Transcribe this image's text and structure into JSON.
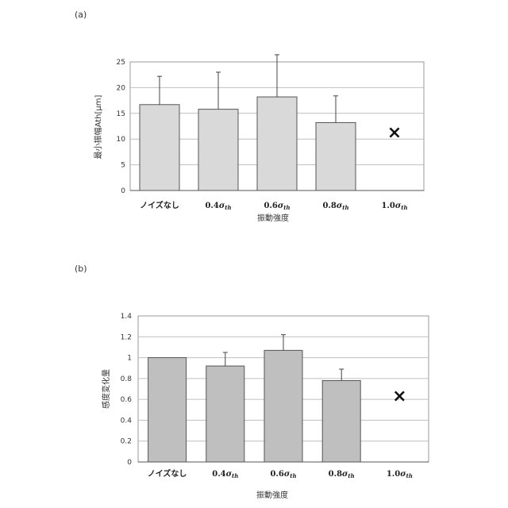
{
  "chart_data": [
    {
      "panel": "(a)",
      "type": "bar",
      "categories": [
        "ノイズなし",
        "0.4σth",
        "0.6σth",
        "0.8σth",
        "1.0σth"
      ],
      "values": [
        16.7,
        15.8,
        18.2,
        13.2,
        null
      ],
      "errors": [
        5.5,
        7.2,
        8.2,
        5.2,
        null
      ],
      "missing_marker": "×",
      "xlabel": "振動強度",
      "ylabel": "最小振幅Ath[μm]",
      "ylim": [
        0,
        25
      ],
      "yticks": [
        "0",
        "5",
        "10",
        "15",
        "20",
        "25"
      ],
      "grid": true,
      "bar_color": "#d9d9d9"
    },
    {
      "panel": "(b)",
      "type": "bar",
      "categories": [
        "ノイズなし",
        "0.4σth",
        "0.6σth",
        "0.8σth",
        "1.0σth"
      ],
      "values": [
        1.0,
        0.92,
        1.07,
        0.78,
        null
      ],
      "errors": [
        0,
        0.13,
        0.15,
        0.11,
        null
      ],
      "missing_marker": "×",
      "xlabel": "振動強度",
      "ylabel": "感度変化量",
      "ylim": [
        0,
        1.4
      ],
      "yticks": [
        "0",
        "0.2",
        "0.4",
        "0.6",
        "0.8",
        "1",
        "1.2",
        "1.4"
      ],
      "grid": true,
      "bar_color": "#bfbfbf"
    }
  ]
}
